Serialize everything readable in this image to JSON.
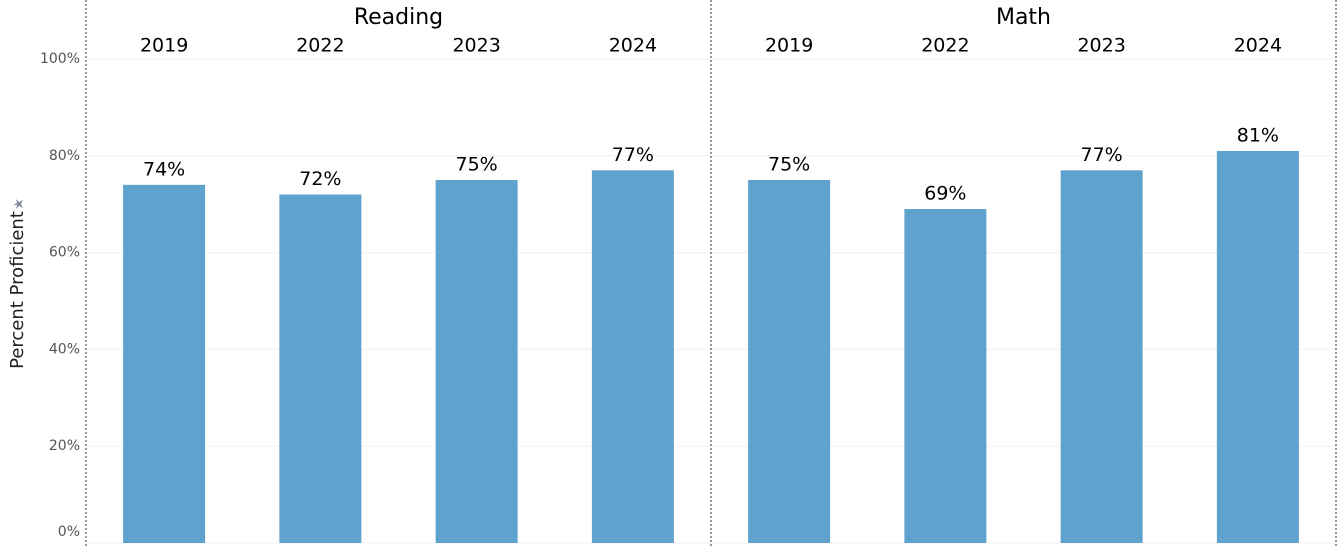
{
  "chart_data": {
    "type": "bar",
    "ylabel": "Percent Proficient",
    "color": "#5fa2cd",
    "grid": true,
    "ylim": [
      0,
      100
    ],
    "yticks": [
      {
        "value": 0,
        "label": "0%"
      },
      {
        "value": 20,
        "label": "20%"
      },
      {
        "value": 40,
        "label": "40%"
      },
      {
        "value": 60,
        "label": "60%"
      },
      {
        "value": 80,
        "label": "80%"
      },
      {
        "value": 100,
        "label": "100%"
      }
    ],
    "panels": [
      {
        "title": "Reading",
        "categories": [
          "2019",
          "2022",
          "2023",
          "2024"
        ],
        "values": [
          74,
          72,
          75,
          77
        ],
        "value_labels": [
          "74%",
          "72%",
          "75%",
          "77%"
        ]
      },
      {
        "title": "Math",
        "categories": [
          "2019",
          "2022",
          "2023",
          "2024"
        ],
        "values": [
          75,
          69,
          77,
          81
        ],
        "value_labels": [
          "75%",
          "69%",
          "77%",
          "81%"
        ]
      }
    ]
  }
}
